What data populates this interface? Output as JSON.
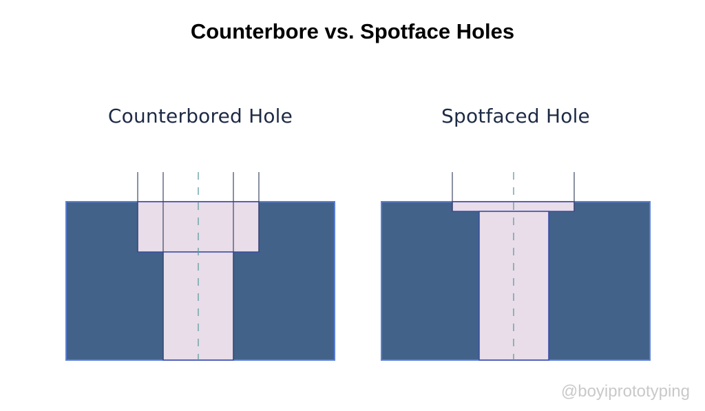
{
  "title": "Counterbore vs. Spotface Holes",
  "panels": [
    {
      "label": "Counterbored Hole"
    },
    {
      "label": "Spotfaced Hole"
    }
  ],
  "watermark": "@boyiprototyping",
  "colors": {
    "material": "#42628a",
    "material_edge": "#5a7fd6",
    "hole_fill": "#e8dde9",
    "hole_edge": "#3b4aa8",
    "guide_line": "#3c4566",
    "centerline": "#5e9b9e"
  }
}
